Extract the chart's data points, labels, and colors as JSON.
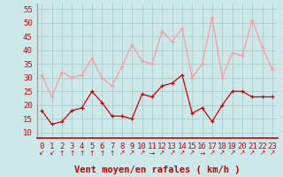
{
  "hours": [
    0,
    1,
    2,
    3,
    4,
    5,
    6,
    7,
    8,
    9,
    10,
    11,
    12,
    13,
    14,
    15,
    16,
    17,
    18,
    19,
    20,
    21,
    22,
    23
  ],
  "wind_mean": [
    18,
    13,
    14,
    18,
    19,
    25,
    21,
    16,
    16,
    15,
    24,
    23,
    27,
    28,
    31,
    17,
    19,
    14,
    20,
    25,
    25,
    23,
    23,
    23
  ],
  "wind_gust": [
    31,
    23,
    32,
    30,
    31,
    37,
    30,
    27,
    34,
    42,
    36,
    35,
    47,
    43,
    48,
    30,
    35,
    52,
    30,
    39,
    38,
    51,
    41,
    33
  ],
  "mean_color": "#cc0000",
  "gust_color": "#ff9999",
  "bg_color": "#cce8e8",
  "grid_color": "#aacccc",
  "xlabel": "Vent moyen/en rafales ( km/h )",
  "ylabel_ticks": [
    10,
    15,
    20,
    25,
    30,
    35,
    40,
    45,
    50,
    55
  ],
  "ylim": [
    8,
    57
  ],
  "xlim": [
    -0.5,
    23.5
  ],
  "tick_fontsize": 6.5,
  "xlabel_fontsize": 7.5,
  "arrow_chars": [
    "↙",
    "↙",
    "↑",
    "↑",
    "↑",
    "↑",
    "↑",
    "↑",
    "↗",
    "↗",
    "↗",
    "→",
    "↗",
    "↗",
    "↗",
    "↗",
    "→",
    "↗",
    "↗",
    "↗",
    "↗",
    "↗",
    "↗",
    "↗"
  ]
}
